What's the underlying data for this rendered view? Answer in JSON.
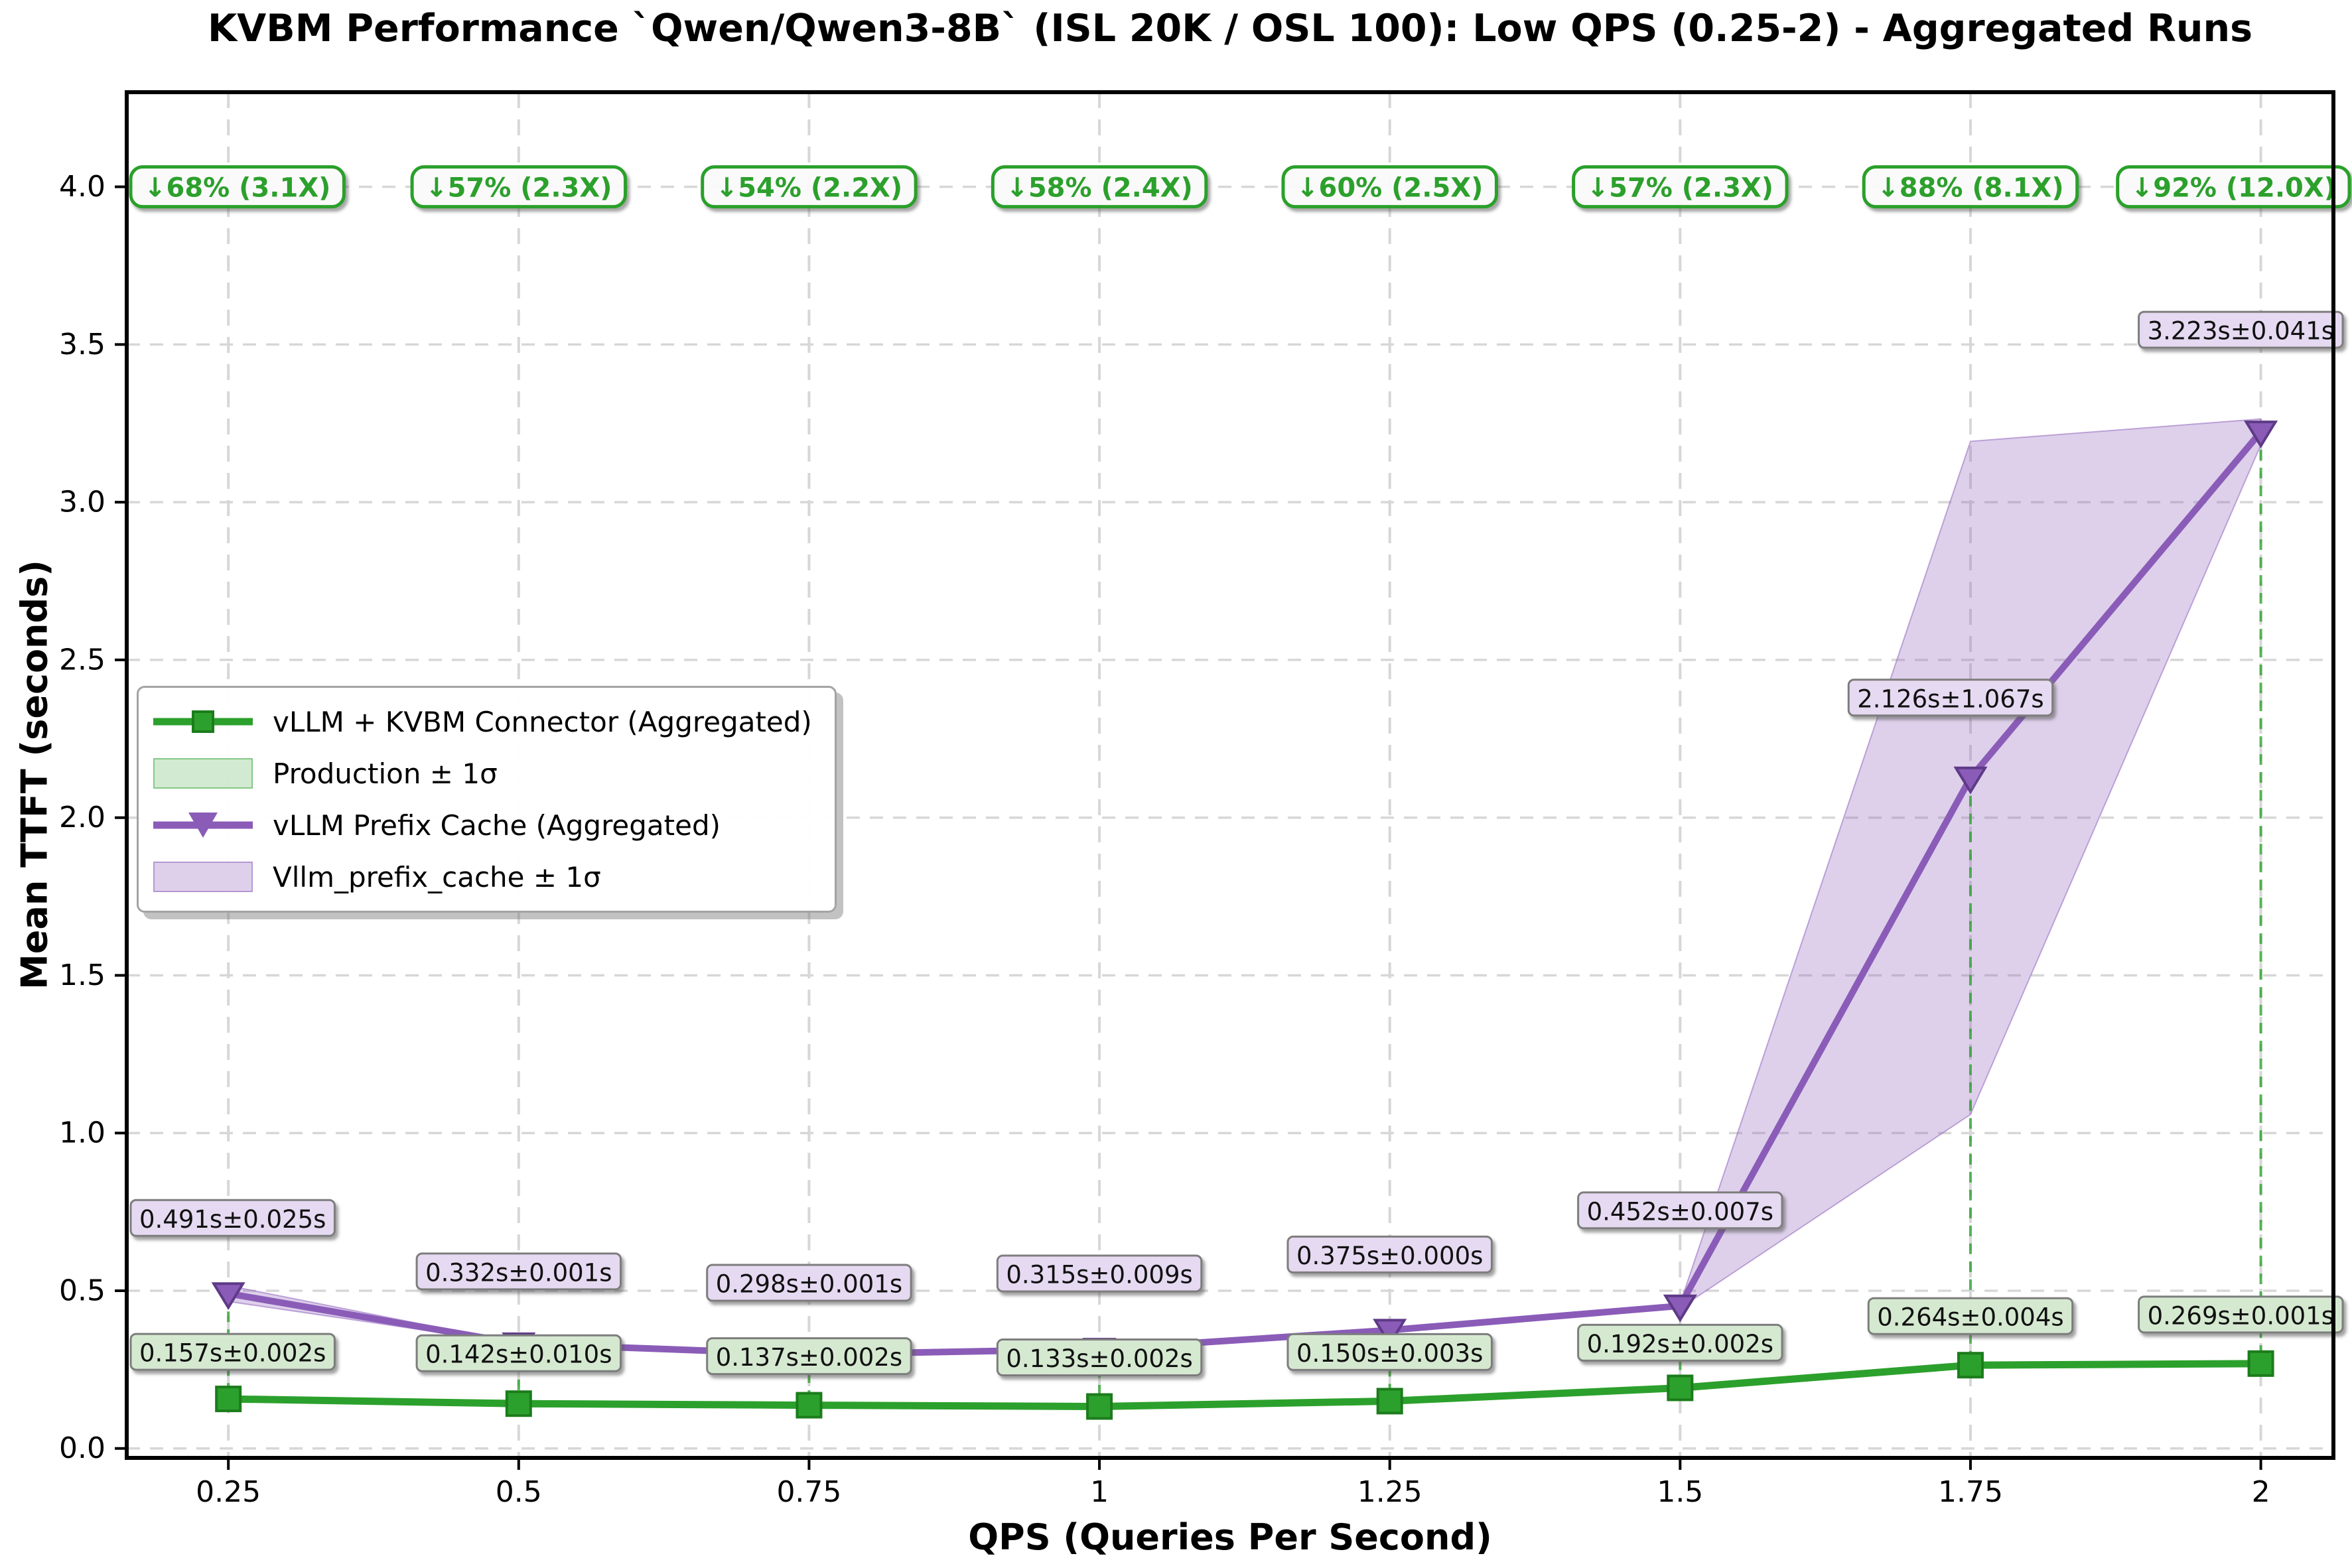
{
  "chart_data": {
    "type": "line",
    "title": "KVBM Performance `Qwen/Qwen3-8B` (ISL 20K / OSL 100): Low QPS (0.25-2) - Aggregated Runs",
    "xlabel": "QPS (Queries Per Second)",
    "ylabel": "Mean TTFT (seconds)",
    "x": [
      0.25,
      0.5,
      0.75,
      1.0,
      1.25,
      1.5,
      1.75,
      2.0
    ],
    "x_tick_labels": [
      "0.25",
      "0.5",
      "0.75",
      "1",
      "1.25",
      "1.5",
      "1.75",
      "2"
    ],
    "y_ticks": [
      0.0,
      0.5,
      1.0,
      1.5,
      2.0,
      2.5,
      3.0,
      3.5,
      4.0
    ],
    "y_tick_labels": [
      "0.0",
      "0.5",
      "1.0",
      "1.5",
      "2.0",
      "2.5",
      "3.0",
      "3.5",
      "4.0"
    ],
    "xlim": [
      0.1625,
      2.0625
    ],
    "ylim": [
      -0.03,
      4.3
    ],
    "grid": true,
    "legend_position": "center left",
    "series": [
      {
        "name": "vLLM + KVBM Connector (Aggregated)",
        "color": "#2ca02c",
        "edge_color": "#1c7c1c",
        "marker": "square",
        "values": [
          0.157,
          0.142,
          0.137,
          0.133,
          0.15,
          0.192,
          0.264,
          0.269
        ],
        "sigma": [
          0.002,
          0.01,
          0.002,
          0.002,
          0.003,
          0.002,
          0.004,
          0.001
        ],
        "labels": [
          "0.157s±0.002s",
          "0.142s±0.010s",
          "0.137s±0.002s",
          "0.133s±0.002s",
          "0.150s±0.003s",
          "0.192s±0.002s",
          "0.264s±0.004s",
          "0.269s±0.001s"
        ],
        "band_label": "Production ± 1σ",
        "band_fill": "rgba(44,160,44,0.22)",
        "band_edge": "rgba(44,160,44,0.45)",
        "label_bg": "#d5e9d1"
      },
      {
        "name": "vLLM Prefix Cache (Aggregated)",
        "color": "#8a5cb8",
        "edge_color": "#5e3a87",
        "marker": "triangle-down",
        "values": [
          0.491,
          0.332,
          0.298,
          0.315,
          0.375,
          0.452,
          2.126,
          3.223
        ],
        "sigma": [
          0.025,
          0.001,
          0.001,
          0.009,
          0.0,
          0.007,
          1.067,
          0.041
        ],
        "labels": [
          "0.491s±0.025s",
          "0.332s±0.001s",
          "0.298s±0.001s",
          "0.315s±0.009s",
          "0.375s±0.000s",
          "0.452s±0.007s",
          "2.126s±1.067s",
          "3.223s±0.041s"
        ],
        "band_label": "Vllm_prefix_cache ± 1σ",
        "band_fill": "rgba(148,103,189,0.31)",
        "band_edge": "rgba(148,103,189,0.55)",
        "label_bg": "#e6daf2"
      }
    ],
    "annotations": {
      "y": 4.0,
      "color": "#2ca02c",
      "labels": [
        "↓68% (3.1X)",
        "↓57% (2.3X)",
        "↓54% (2.2X)",
        "↓58% (2.4X)",
        "↓60% (2.5X)",
        "↓57% (2.3X)",
        "↓88% (8.1X)",
        "↓92% (12.0X)"
      ]
    },
    "legend_items": [
      {
        "label": "vLLM + KVBM Connector (Aggregated)",
        "swatch": "line-square-green"
      },
      {
        "label": "Production ± 1σ",
        "swatch": "band-green"
      },
      {
        "label": "vLLM Prefix Cache (Aggregated)",
        "swatch": "line-triangle-purple"
      },
      {
        "label": "Vllm_prefix_cache ± 1σ",
        "swatch": "band-purple"
      }
    ],
    "colors": {
      "grid": "#d7d7d7",
      "spine": "#000000",
      "connector": "rgba(44,160,44,0.8)",
      "label_border": "#7d7d7d",
      "annotation_green": "#2ca02c"
    }
  }
}
